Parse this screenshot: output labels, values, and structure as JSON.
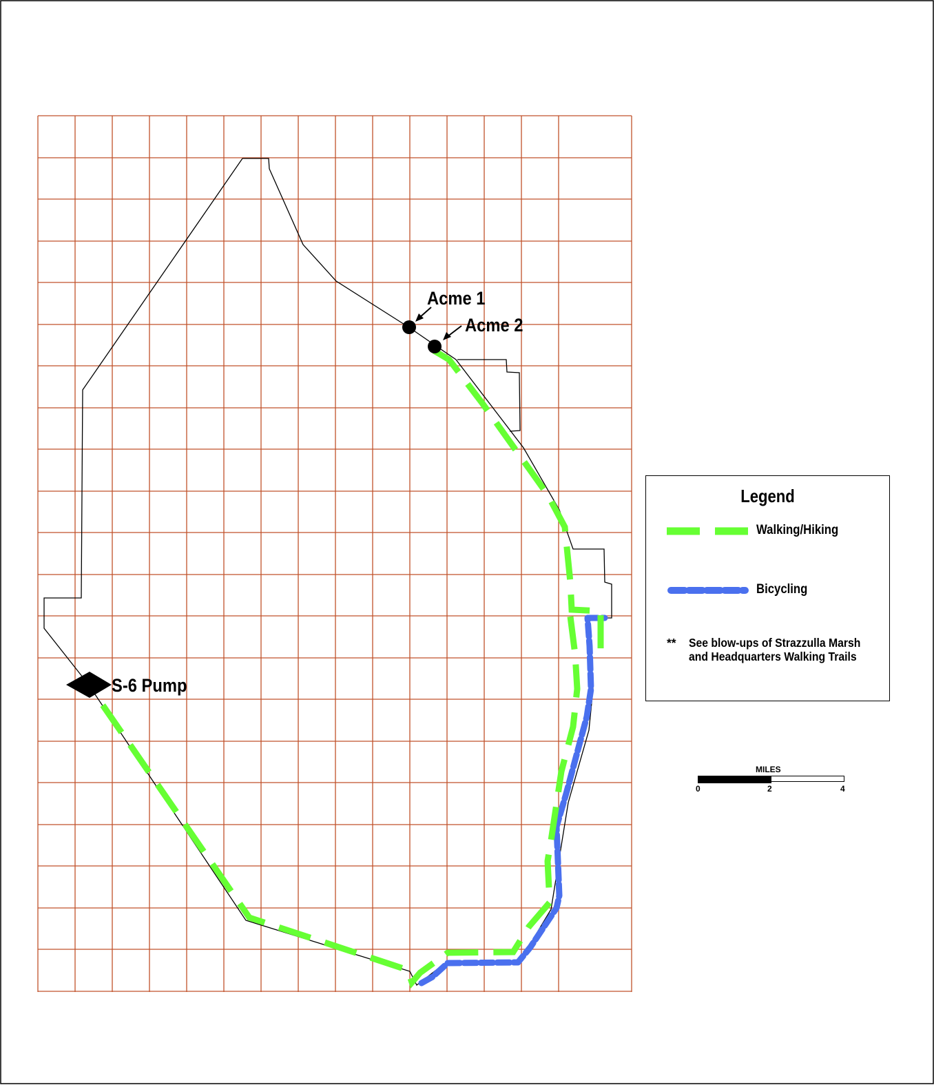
{
  "map": {
    "labels": {
      "acme1": "Acme 1",
      "acme2": "Acme 2",
      "s6_pump": "S-6 Pump"
    },
    "colors": {
      "grid": "#c0522a",
      "boundary": "#000000",
      "walking_trail": "#66ff33",
      "bicycle_trail": "#4a70ee"
    },
    "markers": [
      {
        "name": "acme1",
        "symbol": "circle"
      },
      {
        "name": "acme2",
        "symbol": "circle"
      },
      {
        "name": "s6_pump",
        "symbol": "diamond"
      }
    ]
  },
  "legend": {
    "title": "Legend",
    "items": [
      {
        "label": "Walking/Hiking",
        "style": "green-dashed-line"
      },
      {
        "label": "Bicycling",
        "style": "blue-dashed-line"
      }
    ],
    "note_marker": "**",
    "note": "See blow-ups of Strazzulla Marsh and Headquarters Walking Trails"
  },
  "scale": {
    "title": "MILES",
    "ticks": [
      "0",
      "2",
      "4"
    ]
  }
}
